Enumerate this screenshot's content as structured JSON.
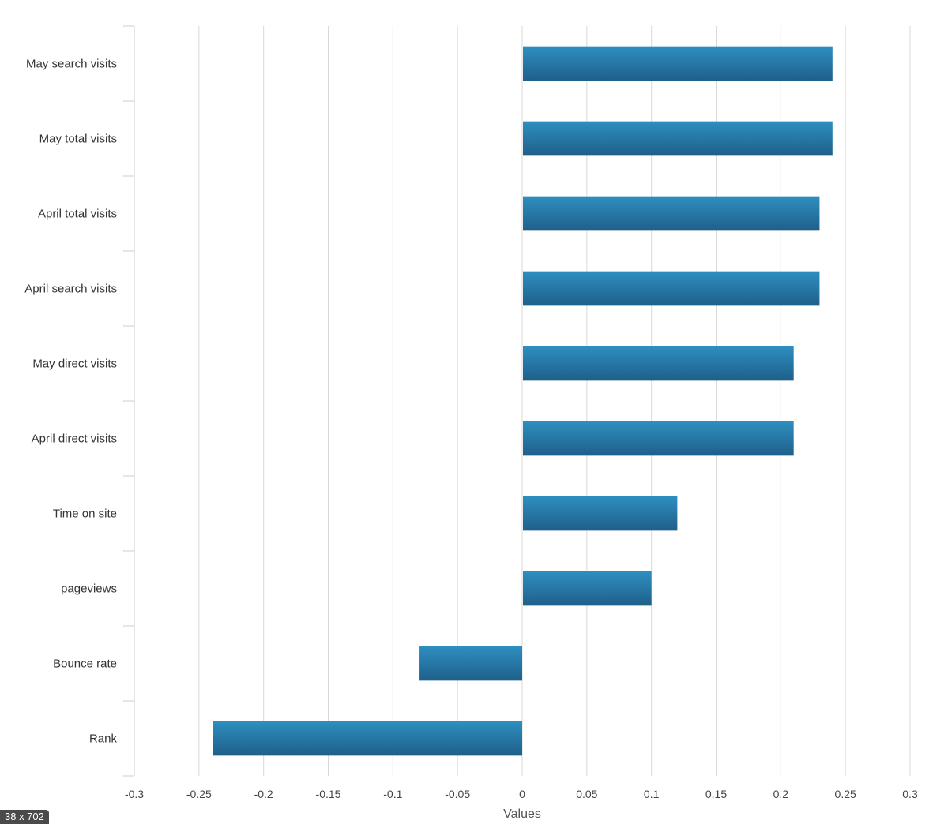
{
  "chart_data": {
    "type": "bar",
    "orientation": "horizontal",
    "categories": [
      "May search visits",
      "May total visits",
      "April total visits",
      "April search visits",
      "May direct visits",
      "April direct visits",
      "Time on site",
      "pageviews",
      "Bounce rate",
      "Rank"
    ],
    "values": [
      0.24,
      0.24,
      0.23,
      0.23,
      0.21,
      0.21,
      0.12,
      0.1,
      -0.08,
      -0.24
    ],
    "xlabel": "Values",
    "ylabel": "",
    "title": "",
    "xlim": [
      -0.3,
      0.3
    ],
    "x_ticks": [
      "-0.3",
      "-0.25",
      "-0.2",
      "-0.15",
      "-0.1",
      "-0.05",
      "0",
      "0.05",
      "0.1",
      "0.15",
      "0.2",
      "0.25",
      "0.3"
    ],
    "grid": "vertical",
    "legend": "none",
    "colors": {
      "bar_top": "#2e8fc0",
      "bar_bottom": "#1f5f8a",
      "grid": "#d9d9d9",
      "axis": "#cccccc"
    }
  },
  "badge_text": "38 x 702"
}
